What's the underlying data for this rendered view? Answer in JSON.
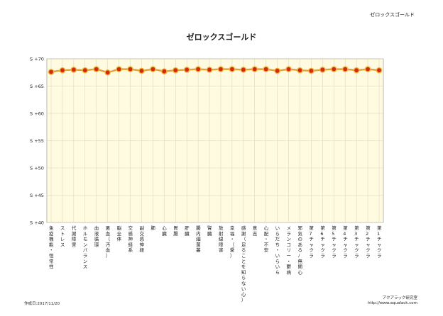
{
  "header": {
    "title": "ゼロックスゴールド"
  },
  "footer": {
    "date": "作成日:2017/11/20",
    "org": "アクアラック研究室",
    "url": "http://www.aqualack.com"
  },
  "colors": {
    "plot_bg": "#fffbe0",
    "line": "#e2a23a",
    "marker_fill": "#d12a10",
    "marker_ring": "#f1b23c",
    "grid": "#d8d2b8"
  },
  "chart_data": {
    "type": "line",
    "title": "ゼロックスゴールド",
    "xlabel": "",
    "ylabel": "",
    "ylim": [
      40,
      70
    ],
    "y_ticks": [
      {
        "value": 40,
        "label": "S +40"
      },
      {
        "value": 45,
        "label": "S +45"
      },
      {
        "value": 50,
        "label": "S +50"
      },
      {
        "value": 55,
        "label": "S +55"
      },
      {
        "value": 60,
        "label": "S +60"
      },
      {
        "value": 65,
        "label": "S +65"
      },
      {
        "value": 70,
        "label": "S +70"
      }
    ],
    "grid": true,
    "categories": [
      "免疫機能・恒常性",
      "ストレス",
      "代謝障害",
      "ホルモンバランス",
      "血液循環",
      "悪血（汚血）",
      "脳全体",
      "交感神経系",
      "副交感神経",
      "肺",
      "心臓",
      "胃腸",
      "肝臓",
      "腸内細菌叢",
      "腎臓",
      "放射線障害",
      "幸福・（愛）",
      "感謝（足ることを知らない心）",
      "意志",
      "心配・不安",
      "いらだち・いらいら",
      "メランコリー・鬱病",
      "邪気のあるﾉ無関心",
      "第7チャクラ",
      "第6チャクラ",
      "第5チャクラ",
      "第4チャクラ",
      "第3チャクラ",
      "第2チャクラ",
      "第1チャクラ"
    ],
    "values": [
      67.6,
      67.9,
      68.0,
      67.9,
      68.1,
      67.5,
      68.1,
      68.1,
      67.8,
      68.1,
      67.7,
      67.9,
      68.0,
      68.1,
      68.0,
      68.1,
      68.1,
      68.0,
      68.1,
      68.1,
      67.8,
      68.1,
      67.9,
      67.8,
      68.0,
      68.1,
      68.1,
      67.9,
      68.1,
      67.9
    ]
  }
}
